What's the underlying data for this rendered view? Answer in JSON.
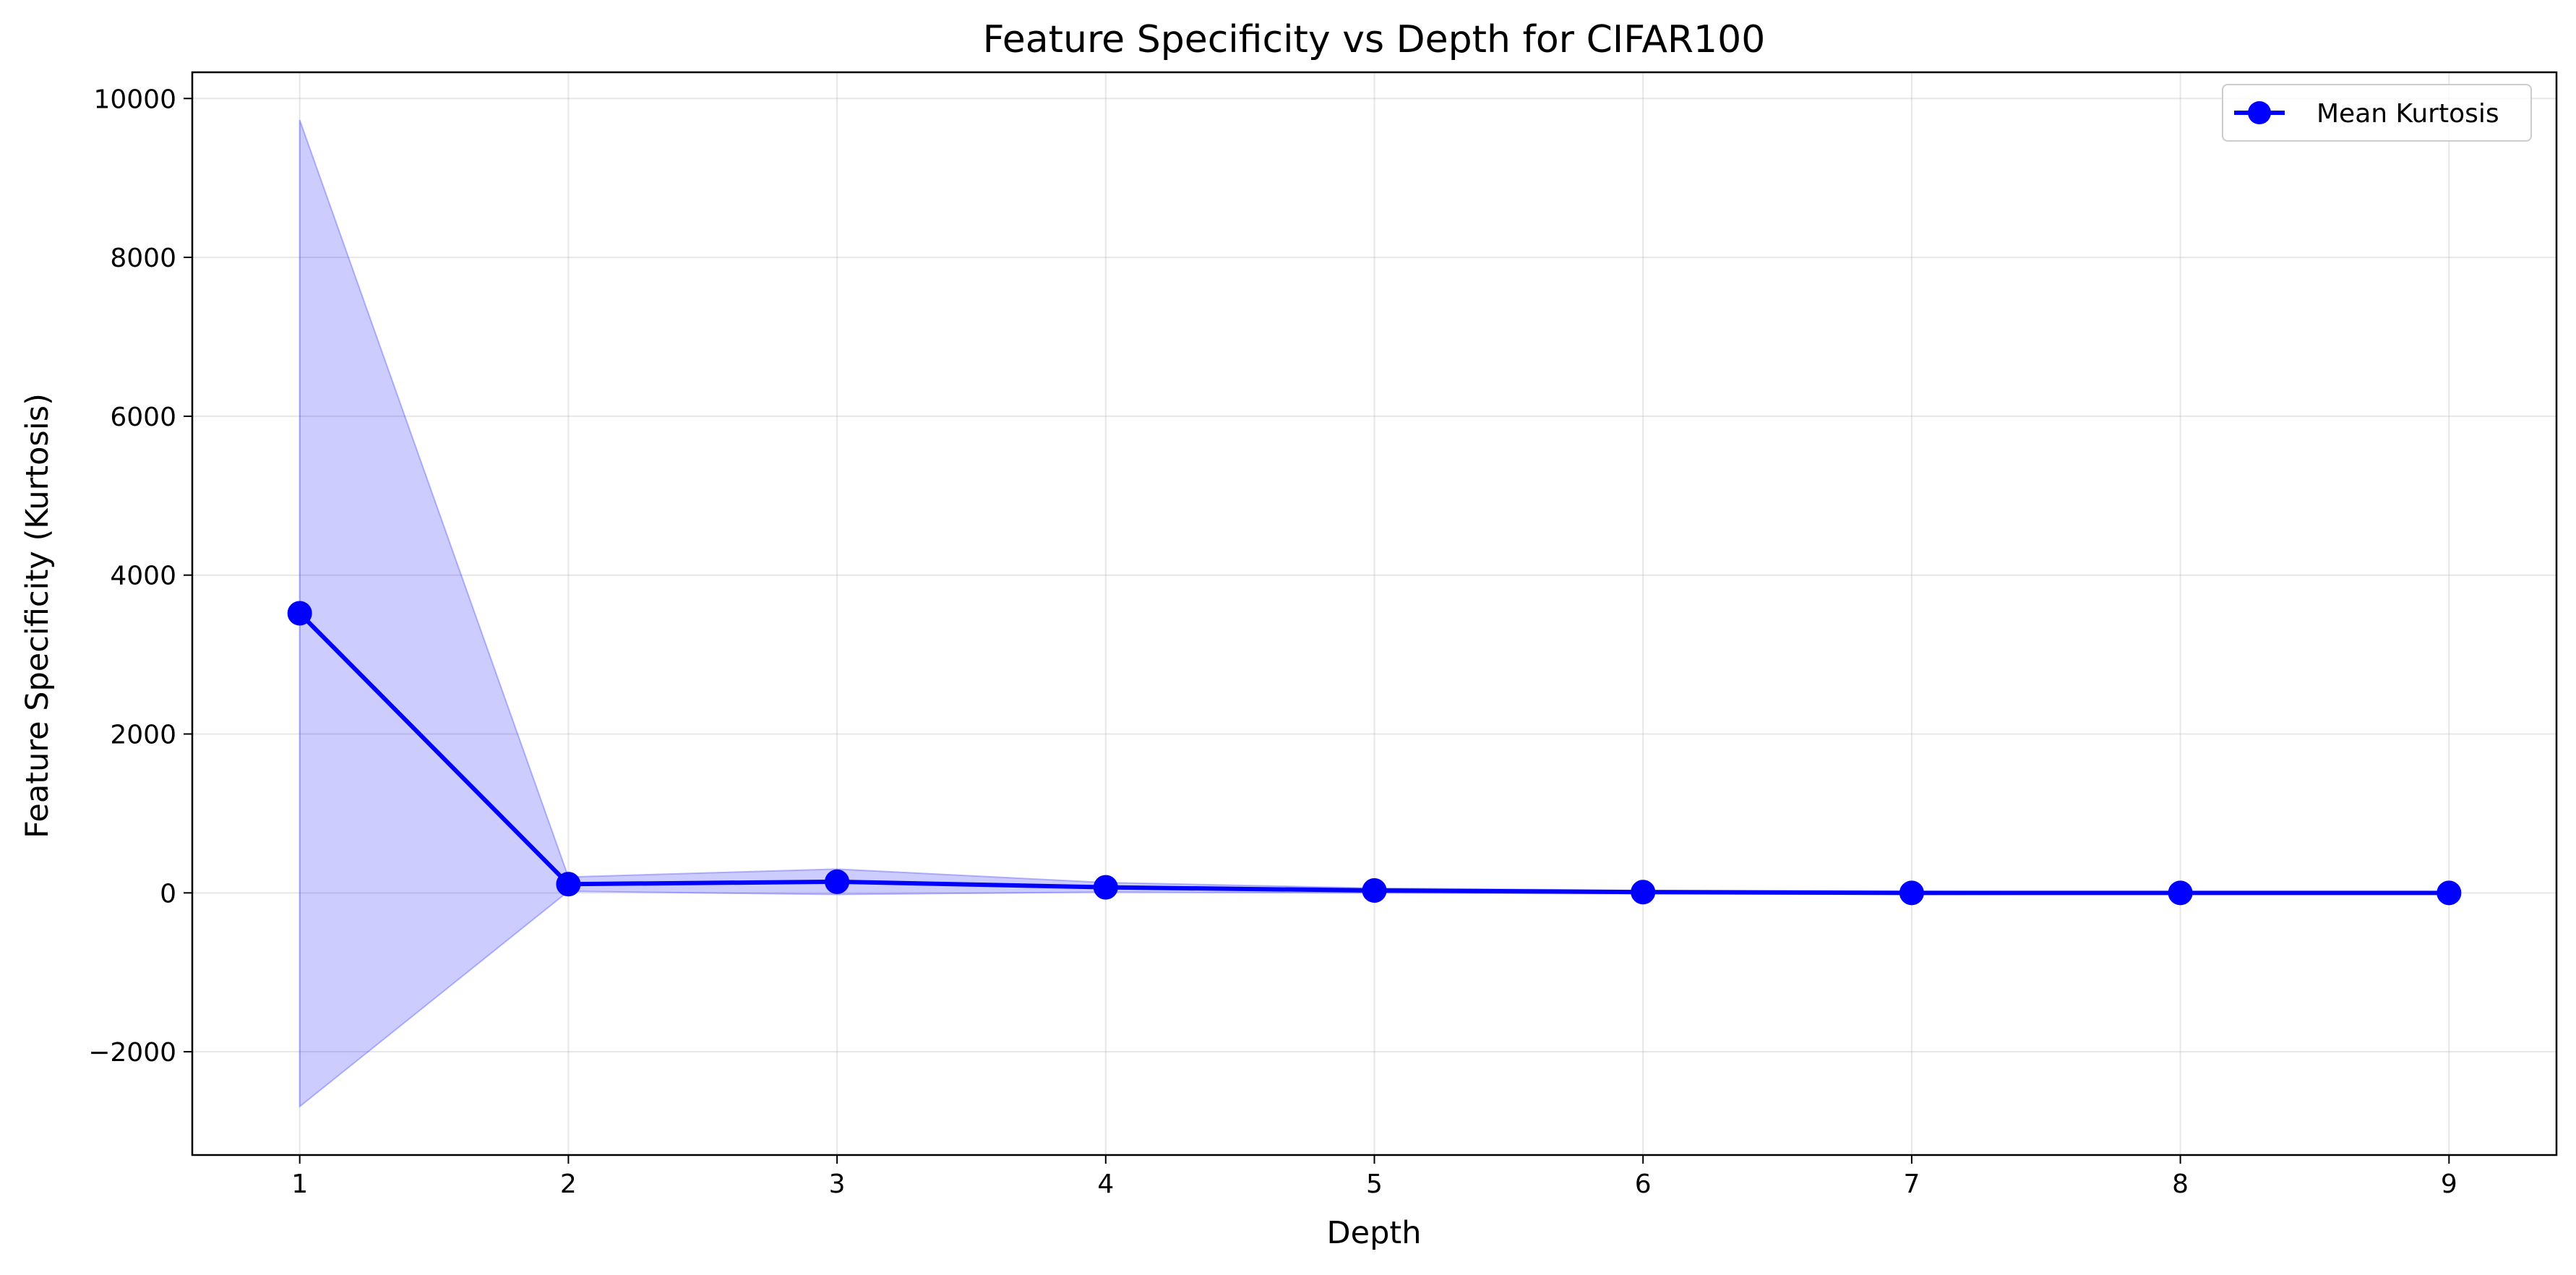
{
  "chart_data": {
    "type": "line",
    "title": "Feature Specificity vs Depth for CIFAR100",
    "xlabel": "Depth",
    "ylabel": "Feature Specificity (Kurtosis)",
    "x": [
      1,
      2,
      3,
      4,
      5,
      6,
      7,
      8,
      9
    ],
    "xticks": [
      1,
      2,
      3,
      4,
      5,
      6,
      7,
      8,
      9
    ],
    "xlim": [
      0.6,
      9.4
    ],
    "yticks": [
      -2000,
      0,
      2000,
      4000,
      6000,
      8000,
      10000
    ],
    "ylim": [
      -3300,
      10330
    ],
    "grid": true,
    "legend_position": "top-right",
    "series": [
      {
        "name": "Mean Kurtosis",
        "color": "#0000ff",
        "marker": "circle",
        "values": [
          3520,
          110,
          140,
          70,
          30,
          10,
          0,
          0,
          0
        ]
      }
    ],
    "band": {
      "color": "#0000ff",
      "opacity": 0.2,
      "upper": [
        9730,
        200,
        300,
        130,
        60,
        30,
        20,
        10,
        10
      ],
      "lower": [
        -2690,
        20,
        -20,
        10,
        0,
        -10,
        -20,
        -10,
        -10
      ]
    }
  }
}
